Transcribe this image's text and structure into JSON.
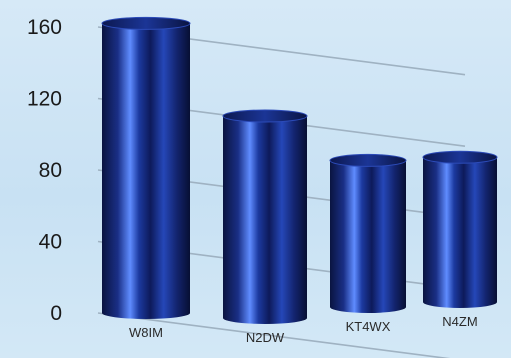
{
  "chart_data": {
    "type": "bar",
    "style": "3d-cylinder",
    "categories": [
      "W8IM",
      "N2DW",
      "KT4WX",
      "N4ZM"
    ],
    "values": [
      162,
      113,
      82,
      81
    ],
    "ylim": [
      0,
      160
    ],
    "yticks": [
      0,
      40,
      80,
      120,
      160
    ],
    "ytick_labels": [
      "0",
      "40",
      "80",
      "120",
      "160"
    ],
    "grid": true,
    "title": "",
    "xlabel": "",
    "ylabel": "",
    "colors": {
      "bar_dark": "#0a1440",
      "bar_mid": "#1e3fa8",
      "bar_light": "#6f9cff",
      "background": "#cfe4f5",
      "grid": "#9fb2c2"
    }
  }
}
